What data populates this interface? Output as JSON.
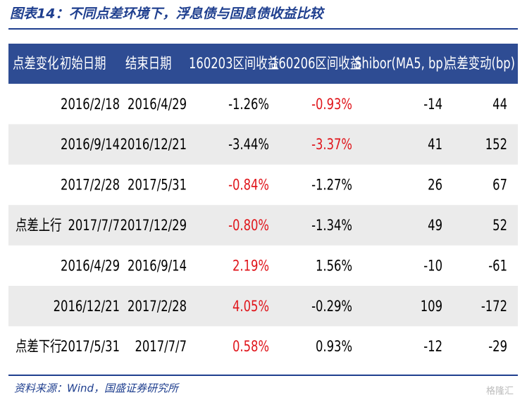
{
  "title": "图表14：不同点差环境下，浮息债与固息债收益比较",
  "table": {
    "header": [
      "点差变化",
      "初始日期",
      "结束日期",
      "160203区间收益",
      "160206区间收益",
      "Shibor(MA5, bp)",
      "点差变动(bp)"
    ],
    "rows": [
      {
        "cells": [
          "2016/2/18",
          "2016/4/29",
          "-1.26%",
          "-0.93%",
          "-14",
          "44"
        ],
        "red_columns": [
          3
        ]
      },
      {
        "cells": [
          "2016/9/14",
          "2016/12/21",
          "-3.44%",
          "-3.37%",
          "41",
          "152"
        ],
        "red_columns": [
          3
        ]
      },
      {
        "cells": [
          "2017/2/28",
          "2017/5/31",
          "-0.84%",
          "-1.27%",
          "26",
          "67"
        ],
        "red_columns": [
          2
        ]
      },
      {
        "group": "点差上行",
        "cells": [
          "2017/7/7",
          "2017/12/29",
          "-0.80%",
          "-1.34%",
          "49",
          "52"
        ],
        "red_columns": [
          2
        ]
      },
      {
        "cells": [
          "2016/4/29",
          "2016/9/14",
          "2.19%",
          "1.56%",
          "-10",
          "-61"
        ],
        "red_columns": [
          2
        ]
      },
      {
        "cells": [
          "2016/12/21",
          "2017/2/28",
          "4.05%",
          "-0.29%",
          "109",
          "-172"
        ],
        "red_columns": [
          2
        ]
      },
      {
        "group": "点差下行",
        "cells": [
          "2017/5/31",
          "2017/7/7",
          "0.58%",
          "0.93%",
          "-12",
          "-29"
        ],
        "red_columns": [
          2
        ]
      }
    ]
  },
  "source": "资料来源：Wind，国盛证券研究所",
  "watermark": "格隆汇"
}
